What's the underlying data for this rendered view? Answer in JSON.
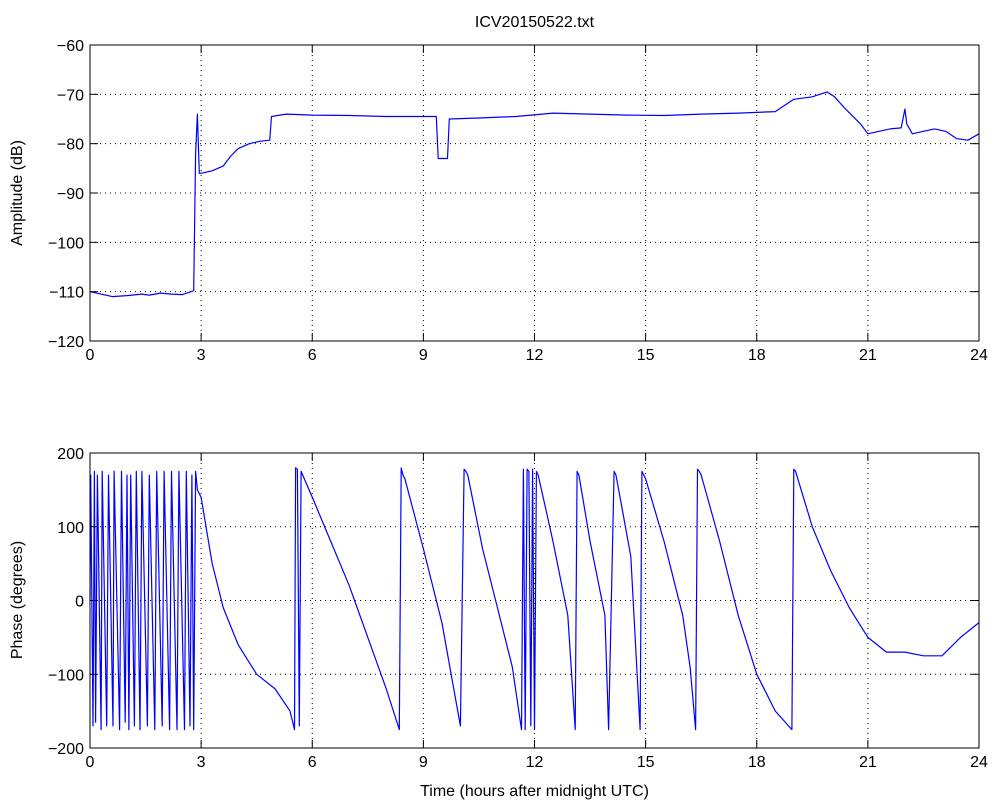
{
  "chart_data": [
    {
      "type": "line",
      "title": "ICV20150522.txt",
      "xlabel": "",
      "ylabel": "Amplitude (dB)",
      "xlim": [
        0,
        24
      ],
      "ylim": [
        -120,
        -60
      ],
      "xticks": [
        0,
        3,
        6,
        9,
        12,
        15,
        18,
        21,
        24
      ],
      "yticks": [
        -120,
        -110,
        -100,
        -90,
        -80,
        -70,
        -60
      ],
      "xtick_labels": [
        "0",
        "3",
        "6",
        "9",
        "12",
        "15",
        "18",
        "21",
        "24"
      ],
      "ytick_labels": [
        "−120",
        "−110",
        "−100",
        "−90",
        "−80",
        "−70",
        "−60"
      ],
      "grid": true,
      "line_color": "#0000ff",
      "series": [
        {
          "x": [
            0,
            0.3,
            0.6,
            1.0,
            1.4,
            1.6,
            1.9,
            2.2,
            2.5,
            2.8,
            2.85,
            2.9,
            2.95,
            3.0,
            3.3,
            3.6,
            3.8,
            4.0,
            4.3,
            4.6,
            4.85,
            4.9,
            5.3,
            6.0,
            7.0,
            8.0,
            9.0,
            9.35,
            9.4,
            9.65,
            9.7,
            10.5,
            11.5,
            12.5,
            13.5,
            14.5,
            15.5,
            16.5,
            17.5,
            18.5,
            19.0,
            19.5,
            19.9,
            20.1,
            20.4,
            20.8,
            21.0,
            21.3,
            21.6,
            21.9,
            22.0,
            22.05,
            22.2,
            22.5,
            22.8,
            23.1,
            23.4,
            23.7,
            24.0
          ],
          "y": [
            -110,
            -110.5,
            -111,
            -110.8,
            -110.5,
            -110.7,
            -110.3,
            -110.5,
            -110.6,
            -109.8,
            -82,
            -74,
            -86,
            -86,
            -85.5,
            -84.5,
            -82.5,
            -81,
            -80,
            -79.5,
            -79.3,
            -74.5,
            -74,
            -74.2,
            -74.3,
            -74.5,
            -74.5,
            -74.5,
            -83,
            -83,
            -75,
            -74.8,
            -74.5,
            -73.8,
            -74,
            -74.2,
            -74.3,
            -74,
            -73.8,
            -73.5,
            -71,
            -70.5,
            -69.5,
            -70.5,
            -73,
            -76,
            -78,
            -77.5,
            -77,
            -76.8,
            -73,
            -76,
            -78,
            -77.5,
            -77,
            -77.5,
            -79,
            -79.3,
            -78
          ]
        }
      ]
    },
    {
      "type": "line",
      "title": "",
      "xlabel": "Time (hours after midnight UTC)",
      "ylabel": "Phase (degrees)",
      "xlim": [
        0,
        24
      ],
      "ylim": [
        -200,
        200
      ],
      "xticks": [
        0,
        3,
        6,
        9,
        12,
        15,
        18,
        21,
        24
      ],
      "yticks": [
        -200,
        -100,
        0,
        100,
        200
      ],
      "xtick_labels": [
        "0",
        "3",
        "6",
        "9",
        "12",
        "15",
        "18",
        "21",
        "24"
      ],
      "ytick_labels": [
        "−200",
        "−100",
        "0",
        "100",
        "200"
      ],
      "grid": true,
      "line_color": "#0000ff",
      "series": [
        {
          "x": [
            0,
            0.02,
            0.08,
            0.12,
            0.15,
            0.2,
            0.3,
            0.33,
            0.45,
            0.5,
            0.62,
            0.65,
            0.8,
            0.85,
            0.95,
            1.0,
            1.05,
            1.1,
            1.2,
            1.25,
            1.35,
            1.4,
            1.55,
            1.6,
            1.75,
            1.8,
            1.95,
            2.0,
            2.15,
            2.2,
            2.35,
            2.4,
            2.55,
            2.6,
            2.7,
            2.75,
            2.8,
            2.85,
            2.9,
            3.0,
            3.3,
            3.6,
            4.0,
            4.5,
            5.0,
            5.4,
            5.52,
            5.55,
            5.6,
            5.65,
            5.7,
            6.0,
            6.5,
            7.0,
            7.5,
            8.0,
            8.35,
            8.4,
            8.45,
            8.5,
            9.0,
            9.5,
            10.0,
            10.1,
            10.15,
            10.2,
            10.6,
            11.0,
            11.4,
            11.65,
            11.7,
            11.75,
            11.8,
            11.85,
            11.9,
            11.95,
            12.0,
            12.05,
            12.1,
            12.5,
            12.9,
            13.1,
            13.15,
            13.2,
            13.5,
            13.9,
            14.0,
            14.15,
            14.2,
            14.6,
            14.85,
            14.9,
            14.95,
            15.0,
            15.5,
            16.0,
            16.2,
            16.35,
            16.4,
            16.45,
            16.5,
            17.0,
            17.5,
            18.0,
            18.5,
            18.95,
            19.0,
            19.05,
            19.5,
            20.0,
            20.5,
            21.0,
            21.5,
            22.0,
            22.5,
            23.0,
            23.5,
            24.0
          ],
          "y": [
            0,
            170,
            -170,
            175,
            -165,
            170,
            -175,
            175,
            -170,
            170,
            -170,
            175,
            -175,
            175,
            -165,
            170,
            -175,
            170,
            -170,
            175,
            -175,
            175,
            -170,
            170,
            -175,
            175,
            -170,
            175,
            -175,
            175,
            -175,
            175,
            -175,
            175,
            -170,
            170,
            -175,
            175,
            150,
            140,
            50,
            -10,
            -60,
            -100,
            -120,
            -150,
            -175,
            180,
            178,
            -170,
            175,
            140,
            80,
            20,
            -50,
            -120,
            -175,
            180,
            170,
            165,
            70,
            -30,
            -170,
            178,
            175,
            170,
            70,
            -10,
            -90,
            -175,
            178,
            -175,
            178,
            175,
            -170,
            178,
            -175,
            175,
            170,
            80,
            -20,
            -175,
            175,
            170,
            80,
            -20,
            -175,
            175,
            170,
            60,
            -175,
            175,
            170,
            165,
            80,
            -20,
            -90,
            -175,
            178,
            175,
            170,
            80,
            -20,
            -100,
            -150,
            -175,
            178,
            175,
            100,
            40,
            -10,
            -50,
            -70,
            -70,
            -75,
            -75,
            -50,
            -30
          ]
        }
      ]
    }
  ]
}
